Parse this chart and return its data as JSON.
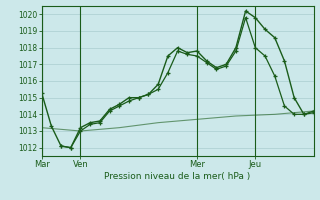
{
  "background_color": "#cce8ea",
  "grid_color": "#aacdd0",
  "line_color": "#1a5c1a",
  "ylabel_text": "Pression niveau de la mer( hPa )",
  "ylim": [
    1011.5,
    1020.5
  ],
  "yticks": [
    1012,
    1013,
    1014,
    1015,
    1016,
    1017,
    1018,
    1019,
    1020
  ],
  "day_labels": [
    "Mar",
    "Ven",
    "Mer",
    "Jeu"
  ],
  "day_positions": [
    0,
    4,
    16,
    22
  ],
  "xlim": [
    0,
    28
  ],
  "series1": [
    [
      0,
      1015.3
    ],
    [
      1,
      1013.3
    ],
    [
      2,
      1012.1
    ],
    [
      3,
      1012.0
    ],
    [
      4,
      1013.2
    ],
    [
      5,
      1013.5
    ],
    [
      6,
      1013.6
    ],
    [
      7,
      1014.3
    ],
    [
      8,
      1014.6
    ],
    [
      9,
      1015.0
    ],
    [
      10,
      1015.0
    ],
    [
      11,
      1015.2
    ],
    [
      12,
      1015.8
    ],
    [
      13,
      1017.5
    ],
    [
      14,
      1018.0
    ],
    [
      15,
      1017.7
    ],
    [
      16,
      1017.8
    ],
    [
      17,
      1017.2
    ],
    [
      18,
      1016.8
    ],
    [
      19,
      1017.0
    ],
    [
      20,
      1018.0
    ],
    [
      21,
      1020.2
    ],
    [
      22,
      1019.8
    ],
    [
      23,
      1019.1
    ],
    [
      24,
      1018.6
    ],
    [
      25,
      1017.2
    ],
    [
      26,
      1015.0
    ],
    [
      27,
      1014.0
    ],
    [
      28,
      1014.1
    ]
  ],
  "series2": [
    [
      2,
      1012.1
    ],
    [
      3,
      1012.0
    ],
    [
      4,
      1013.0
    ],
    [
      5,
      1013.4
    ],
    [
      6,
      1013.5
    ],
    [
      7,
      1014.2
    ],
    [
      8,
      1014.5
    ],
    [
      9,
      1014.8
    ],
    [
      10,
      1015.0
    ],
    [
      11,
      1015.2
    ],
    [
      12,
      1015.5
    ],
    [
      13,
      1016.5
    ],
    [
      14,
      1017.8
    ],
    [
      15,
      1017.6
    ],
    [
      16,
      1017.5
    ],
    [
      17,
      1017.1
    ],
    [
      18,
      1016.7
    ],
    [
      19,
      1016.9
    ],
    [
      20,
      1017.8
    ],
    [
      21,
      1019.8
    ],
    [
      22,
      1018.0
    ],
    [
      23,
      1017.5
    ],
    [
      24,
      1016.3
    ],
    [
      25,
      1014.5
    ],
    [
      26,
      1014.0
    ],
    [
      27,
      1014.0
    ],
    [
      28,
      1014.2
    ]
  ],
  "series3": [
    [
      0,
      1013.2
    ],
    [
      4,
      1013.0
    ],
    [
      8,
      1013.2
    ],
    [
      12,
      1013.5
    ],
    [
      16,
      1013.7
    ],
    [
      20,
      1013.9
    ],
    [
      24,
      1014.0
    ],
    [
      28,
      1014.2
    ]
  ]
}
